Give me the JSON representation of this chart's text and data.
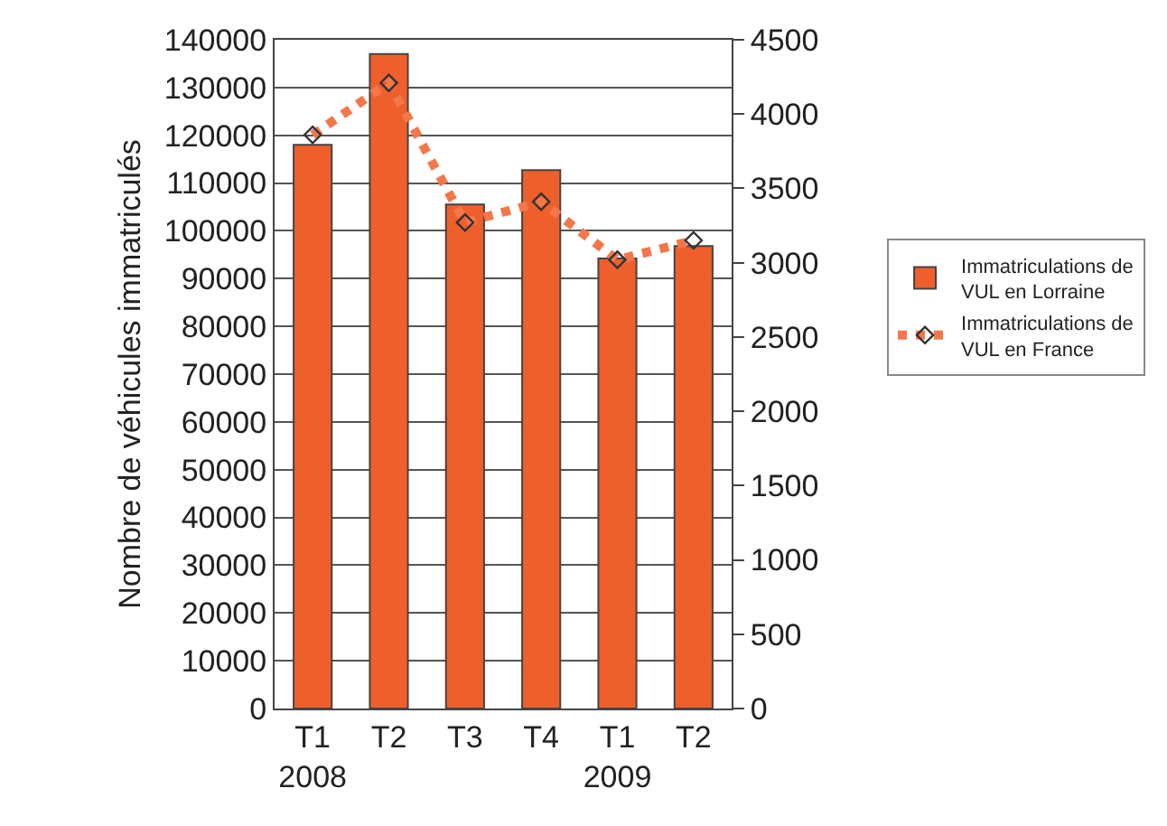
{
  "chart_data": {
    "type": "bar",
    "ylabel": "Nombre de véhicules immatriculés",
    "categories": [
      "T1\n2008",
      "T2",
      "T3",
      "T4",
      "T1\n2009",
      "T2"
    ],
    "series": [
      {
        "name": "Immatriculations de VUL en Lorraine",
        "color": "#ef5f2b",
        "values": [
          118000,
          137000,
          105500,
          112700,
          94200,
          96800
        ]
      },
      {
        "name": "Immatriculations de VUL en France",
        "type": "line",
        "axis": "y2",
        "color": "#f4774a",
        "marker": "diamond",
        "line_style": "dotted",
        "values": [
          3860,
          4210,
          3270,
          3410,
          3020,
          3150
        ]
      }
    ],
    "ylim": [
      0,
      140000
    ],
    "yticks": [
      0,
      10000,
      20000,
      30000,
      40000,
      50000,
      60000,
      70000,
      80000,
      90000,
      100000,
      110000,
      120000,
      130000,
      140000
    ],
    "y2lim": [
      0,
      4500
    ],
    "y2ticks": [
      0,
      500,
      1000,
      1500,
      2000,
      2500,
      3000,
      3500,
      4000,
      4500
    ],
    "grid": "y",
    "legend": "right"
  }
}
